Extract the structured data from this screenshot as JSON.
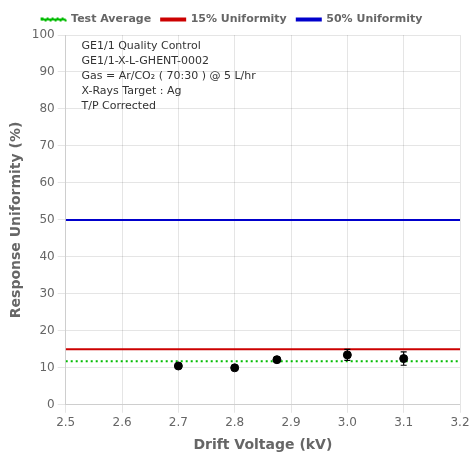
{
  "chart_data": {
    "type": "scatter",
    "xlabel": "Drift Voltage (kV)",
    "ylabel": "Response Uniformity (%)",
    "xlim": [
      2.5,
      3.2
    ],
    "ylim": [
      0,
      100
    ],
    "xticks": [
      2.5,
      2.6,
      2.7,
      2.8,
      2.9,
      {
        "value": 3.0,
        "label": "3.0"
      },
      3.1,
      3.2
    ],
    "yticks": [
      0,
      10,
      20,
      30,
      40,
      50,
      60,
      70,
      80,
      90,
      100
    ],
    "grid": true,
    "legend": "top",
    "annotations": [
      "GE1/1 Quality Control",
      "GE1/1-X-L-GHENT-0002",
      "Gas = Ar/CO₂ ( 70:30 ) @ 5 L/hr",
      "X-Rays Target : Ag",
      "T/P Corrected"
    ],
    "series": [
      {
        "name": "Test Average",
        "type": "hline",
        "value": 11.8,
        "color": "#00bb00",
        "line_style": "dotted"
      },
      {
        "name": "15% Uniformity",
        "type": "hline",
        "value": 15.0,
        "color": "#cc0000",
        "line_style": "solid"
      },
      {
        "name": "50% Uniformity",
        "type": "hline",
        "value": 50.0,
        "color": "#0000cc",
        "line_style": "solid"
      },
      {
        "type": "scatter",
        "x": [
          2.7,
          2.8,
          2.875,
          3.0,
          3.1
        ],
        "values": [
          10.5,
          10.0,
          12.2,
          13.5,
          12.5
        ],
        "errors": [
          0.3,
          0.3,
          0.5,
          1.5,
          1.8
        ],
        "color": "#000000",
        "marker": "circle"
      }
    ]
  }
}
